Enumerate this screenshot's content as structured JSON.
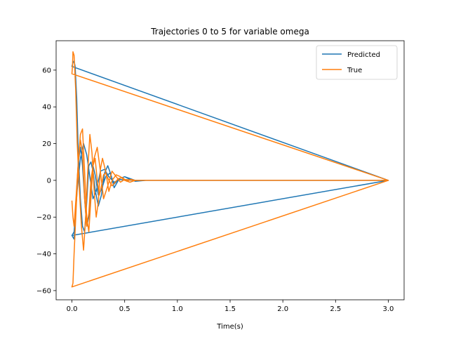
{
  "chart_data": {
    "type": "line",
    "title": "Trajectories 0 to 5 for variable omega",
    "xlabel": "Time(s)",
    "ylabel": "",
    "xlim": [
      -0.15,
      3.15
    ],
    "ylim": [
      -65,
      76
    ],
    "xticks": [
      0.0,
      0.5,
      1.0,
      1.5,
      2.0,
      2.5,
      3.0
    ],
    "xtick_labels": [
      "0.0",
      "0.5",
      "1.0",
      "1.5",
      "2.0",
      "2.5",
      "3.0"
    ],
    "yticks": [
      -60,
      -40,
      -20,
      0,
      20,
      40,
      60
    ],
    "ytick_labels": [
      "−60",
      "−40",
      "−20",
      "0",
      "20",
      "40",
      "60"
    ],
    "grid": false,
    "legend_position": "top-right",
    "series": [
      {
        "name": "Predicted",
        "color": "#1f77b4",
        "x": [
          0.0,
          0.02,
          0.04,
          0.06,
          0.08,
          0.1,
          0.12,
          0.14,
          0.16,
          0.18,
          0.2,
          0.22,
          0.25,
          0.28,
          0.32,
          0.36,
          0.4,
          0.45,
          0.5,
          0.55,
          0.6,
          0.7,
          0.8,
          1.0,
          1.5,
          2.0,
          2.5,
          3.0,
          0.0,
          0.01,
          0.02,
          0.03,
          0.045,
          0.06,
          0.08,
          0.1,
          0.12,
          0.14,
          0.16,
          0.18,
          0.2,
          0.22,
          0.25,
          0.28,
          0.31,
          0.34,
          0.37,
          0.4,
          0.45,
          0.5,
          0.55,
          0.6,
          0.7,
          1.0,
          1.5,
          2.0,
          2.5,
          3.0,
          0.0,
          0.02,
          0.05,
          0.08,
          0.11,
          0.14,
          0.17,
          0.2,
          0.23,
          0.27,
          0.31,
          0.35,
          0.4,
          0.45,
          0.5,
          0.6,
          0.8,
          1.2,
          2.0,
          3.0
        ],
        "y": [
          -30,
          -32,
          -10,
          10,
          18,
          8,
          -10,
          -25,
          -20,
          -5,
          8,
          3,
          -8,
          -5,
          2,
          4,
          -2,
          1,
          2,
          0.5,
          -0.5,
          0,
          0,
          0,
          0,
          0,
          0,
          0,
          62,
          64,
          65,
          62,
          45,
          15,
          -10,
          -25,
          -28,
          -12,
          8,
          10,
          5,
          -5,
          -14,
          -8,
          4,
          8,
          3,
          -4,
          1,
          2,
          1,
          0,
          0,
          0,
          0,
          0,
          0,
          0,
          -30,
          -28,
          -5,
          12,
          20,
          14,
          2,
          -10,
          -6,
          5,
          6,
          2,
          -1,
          0.5,
          0.2,
          0,
          0,
          0,
          0,
          0
        ]
      },
      {
        "name": "True",
        "color": "#ff7f0e",
        "x": [
          0.0,
          0.01,
          0.02,
          0.04,
          0.06,
          0.08,
          0.1,
          0.12,
          0.14,
          0.16,
          0.18,
          0.2,
          0.22,
          0.24,
          0.26,
          0.28,
          0.3,
          0.32,
          0.35,
          0.38,
          0.41,
          0.44,
          0.48,
          0.52,
          0.56,
          0.6,
          0.7,
          0.8,
          1.0,
          1.5,
          2.0,
          2.5,
          3.0,
          0.0,
          0.005,
          0.01,
          0.02,
          0.035,
          0.05,
          0.07,
          0.09,
          0.11,
          0.13,
          0.15,
          0.17,
          0.19,
          0.21,
          0.23,
          0.25,
          0.27,
          0.29,
          0.32,
          0.35,
          0.38,
          0.42,
          0.46,
          0.5,
          0.55,
          0.6,
          0.7,
          1.0,
          1.5,
          2.0,
          2.5,
          3.0,
          0.0,
          0.01,
          0.02,
          0.04,
          0.06,
          0.08,
          0.1,
          0.12,
          0.14,
          0.16,
          0.18,
          0.21,
          0.24,
          0.27,
          0.3,
          0.34,
          0.38,
          0.42,
          0.46,
          0.5,
          0.6,
          0.8,
          1.2,
          2.0,
          3.0
        ],
        "y": [
          -11,
          -20,
          -25,
          -8,
          10,
          25,
          28,
          5,
          -20,
          -28,
          -10,
          8,
          12,
          0,
          -8,
          -3,
          3,
          4,
          0,
          -3,
          -1,
          1,
          1.5,
          -0.5,
          0.5,
          0,
          0,
          0,
          0,
          0,
          0,
          0,
          0,
          58,
          62,
          70,
          68,
          50,
          20,
          -5,
          -25,
          -38,
          -20,
          5,
          25,
          15,
          -5,
          -20,
          -12,
          6,
          12,
          5,
          -6,
          0,
          3,
          2,
          0,
          -1,
          0,
          0,
          0,
          0,
          0,
          0,
          0,
          -58,
          -56,
          -40,
          -15,
          10,
          22,
          15,
          -10,
          -25,
          -18,
          0,
          12,
          18,
          5,
          -10,
          -3,
          5,
          2,
          -1,
          0.5,
          0,
          0,
          0,
          0,
          0
        ]
      }
    ]
  }
}
